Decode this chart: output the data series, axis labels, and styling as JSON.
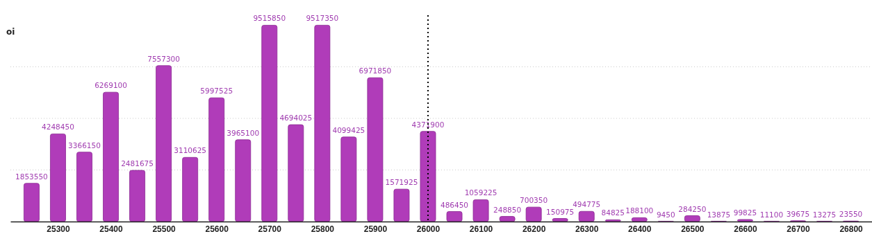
{
  "chart_data": {
    "type": "bar",
    "ylabel": "oi",
    "x": [
      25250,
      25300,
      25350,
      25400,
      25450,
      25500,
      25550,
      25600,
      25650,
      25700,
      25750,
      25800,
      25850,
      25900,
      25950,
      26000,
      26050,
      26100,
      26150,
      26200,
      26250,
      26300,
      26350,
      26400,
      26450,
      26500,
      26550,
      26600,
      26650,
      26700,
      26750,
      26800
    ],
    "values": [
      1853550,
      4248450,
      3366150,
      6269100,
      2481675,
      7557300,
      3110625,
      5997525,
      3965100,
      9515850,
      4694025,
      9517350,
      4099425,
      6971850,
      1571925,
      4371900,
      486450,
      1059225,
      248850,
      700350,
      150975,
      494775,
      84825,
      188100,
      9450,
      284250,
      13875,
      99825,
      11100,
      39675,
      13275,
      23550
    ],
    "color": "#b03cb9",
    "data_labels": true,
    "grid": "y",
    "xlim": [
      25210,
      26840
    ],
    "xticks": [
      25300,
      25400,
      25500,
      25600,
      25700,
      25800,
      25900,
      26000,
      26100,
      26200,
      26300,
      26400,
      26500,
      26600,
      26700,
      26800
    ],
    "ylim": [
      0,
      10000000
    ],
    "yticks": [
      {
        "value": 2500000,
        "label": null
      },
      {
        "value": 5000000,
        "label": null
      },
      {
        "value": 7500000,
        "label": null
      }
    ],
    "tick_labels": "x",
    "ref_lines": [
      {
        "axis": "x",
        "value": 26000,
        "label": null,
        "color": "#000000",
        "line_style": "dotted"
      }
    ]
  }
}
